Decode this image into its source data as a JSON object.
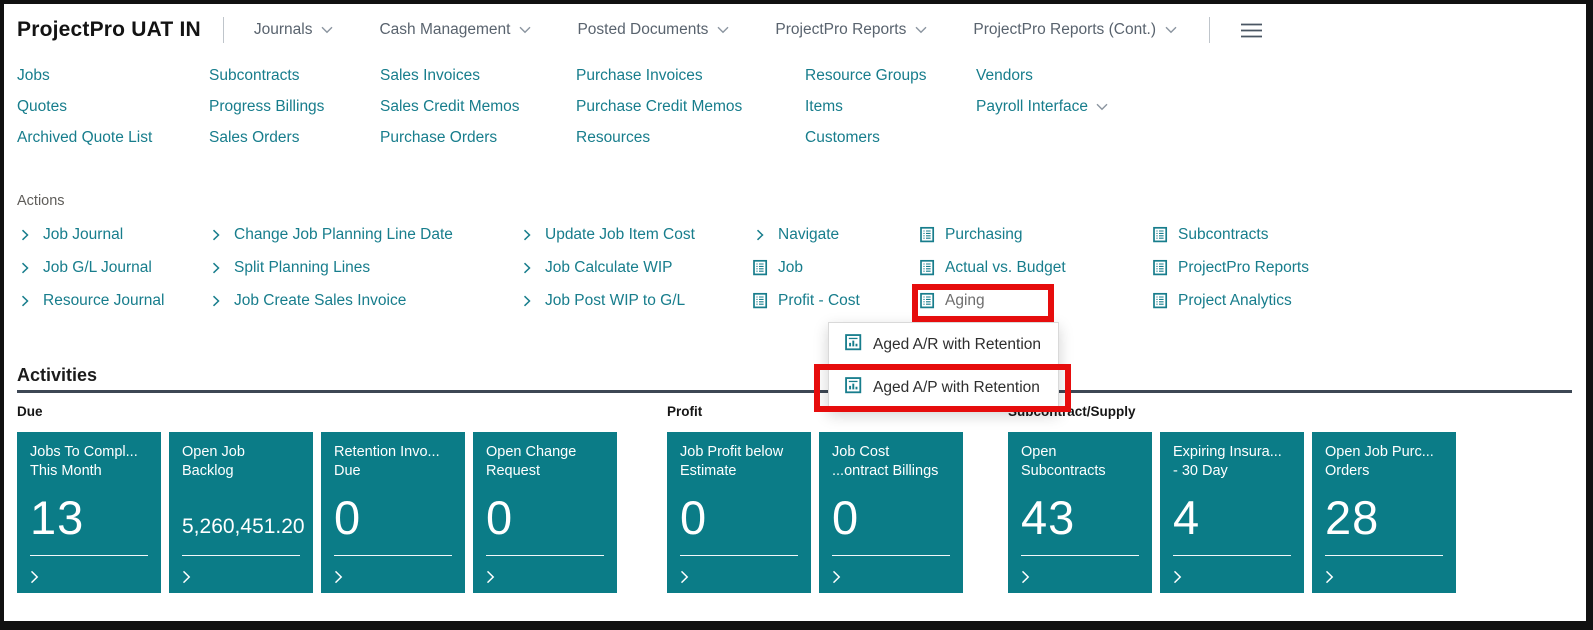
{
  "colors": {
    "accent_teal": "#177d8c",
    "tile_teal": "#0b7c87",
    "highlight_red": "#e60d0d",
    "divider_dark": "#3d4754",
    "menu_gray": "#59636e"
  },
  "header": {
    "title": "ProjectPro UAT IN",
    "menus": [
      "Journals",
      "Cash Management",
      "Posted Documents",
      "ProjectPro Reports",
      "ProjectPro Reports (Cont.)"
    ],
    "hamburger_icon": "menu-icon"
  },
  "nav": {
    "columns": [
      {
        "items": [
          {
            "label": "Jobs"
          },
          {
            "label": "Quotes"
          },
          {
            "label": "Archived Quote List"
          }
        ]
      },
      {
        "items": [
          {
            "label": "Subcontracts"
          },
          {
            "label": "Progress Billings"
          },
          {
            "label": "Sales Orders"
          }
        ]
      },
      {
        "items": [
          {
            "label": "Sales Invoices"
          },
          {
            "label": "Sales Credit Memos"
          },
          {
            "label": "Purchase Orders"
          }
        ]
      },
      {
        "items": [
          {
            "label": "Purchase Invoices"
          },
          {
            "label": "Purchase Credit Memos"
          },
          {
            "label": "Resources"
          }
        ]
      },
      {
        "items": [
          {
            "label": "Resource Groups"
          },
          {
            "label": "Items"
          },
          {
            "label": "Customers"
          }
        ]
      },
      {
        "items": [
          {
            "label": "Vendors"
          },
          {
            "label": "Payroll Interface",
            "has_dropdown": true
          }
        ]
      }
    ]
  },
  "actions": {
    "label": "Actions",
    "columns": [
      {
        "items": [
          {
            "label": "Job Journal",
            "icon": "chevron-right"
          },
          {
            "label": "Job G/L Journal",
            "icon": "chevron-right"
          },
          {
            "label": "Resource Journal",
            "icon": "chevron-right"
          }
        ]
      },
      {
        "items": [
          {
            "label": "Change Job Planning Line Date",
            "icon": "chevron-right"
          },
          {
            "label": "Split Planning Lines",
            "icon": "chevron-right"
          },
          {
            "label": "Job Create Sales Invoice",
            "icon": "chevron-right"
          }
        ]
      },
      {
        "items": [
          {
            "label": "Update Job Item Cost",
            "icon": "chevron-right"
          },
          {
            "label": "Job Calculate WIP",
            "icon": "chevron-right"
          },
          {
            "label": "Job Post WIP to G/L",
            "icon": "chevron-right"
          }
        ]
      },
      {
        "items": [
          {
            "label": "Navigate",
            "icon": "chevron-right"
          },
          {
            "label": "Job",
            "icon": "report"
          },
          {
            "label": "Profit - Cost",
            "icon": "report"
          }
        ]
      },
      {
        "items": [
          {
            "label": "Purchasing",
            "icon": "report"
          },
          {
            "label": "Actual vs. Budget",
            "icon": "report"
          },
          {
            "label": "Aging",
            "icon": "report",
            "muted": true,
            "highlighted": true
          }
        ]
      },
      {
        "items": [
          {
            "label": "Subcontracts",
            "icon": "report"
          },
          {
            "label": "ProjectPro Reports",
            "icon": "report"
          },
          {
            "label": "Project Analytics",
            "icon": "report"
          }
        ]
      }
    ]
  },
  "dropdown": {
    "items": [
      {
        "label": "Aged A/R with Retention",
        "icon": "report-chart"
      },
      {
        "label": "Aged A/P with Retention",
        "icon": "report-chart",
        "highlighted": true
      }
    ]
  },
  "activities": {
    "heading": "Activities",
    "groups": [
      {
        "label": "Due",
        "tiles": [
          {
            "title_line1": "Jobs To Compl...",
            "title_line2": "This Month",
            "value": "13",
            "value_size": "large"
          },
          {
            "title_line1": "Open Job",
            "title_line2": "Backlog",
            "value": "5,260,451.20",
            "value_size": "small"
          },
          {
            "title_line1": "Retention Invo...",
            "title_line2": "Due",
            "value": "0",
            "value_size": "large"
          },
          {
            "title_line1": "Open Change",
            "title_line2": "Request",
            "value": "0",
            "value_size": "large"
          }
        ]
      },
      {
        "label": "Profit",
        "tiles": [
          {
            "title_line1": "Job Profit below",
            "title_line2": "Estimate",
            "value": "0",
            "value_size": "large"
          },
          {
            "title_line1": "Job Cost",
            "title_line2": "...ontract Billings",
            "value": "0",
            "value_size": "large"
          }
        ]
      },
      {
        "label": "Subcontract/Supply",
        "tiles": [
          {
            "title_line1": "Open",
            "title_line2": "Subcontracts",
            "value": "43",
            "value_size": "large"
          },
          {
            "title_line1": "Expiring Insura...",
            "title_line2": "- 30 Day",
            "value": "4",
            "value_size": "large"
          },
          {
            "title_line1": "Open Job Purc...",
            "title_line2": "Orders",
            "value": "28",
            "value_size": "large"
          }
        ]
      }
    ]
  }
}
